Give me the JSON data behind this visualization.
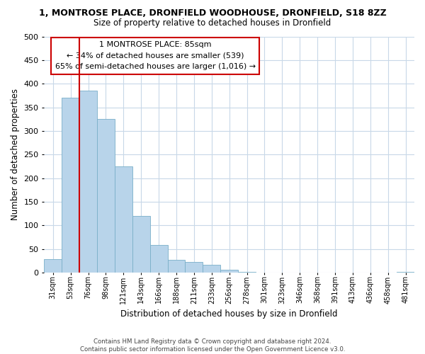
{
  "title": "1, MONTROSE PLACE, DRONFIELD WOODHOUSE, DRONFIELD, S18 8ZZ",
  "subtitle": "Size of property relative to detached houses in Dronfield",
  "xlabel": "Distribution of detached houses by size in Dronfield",
  "ylabel": "Number of detached properties",
  "bar_color": "#b8d4ea",
  "bar_edge_color": "#7aafc8",
  "categories": [
    "31sqm",
    "53sqm",
    "76sqm",
    "98sqm",
    "121sqm",
    "143sqm",
    "166sqm",
    "188sqm",
    "211sqm",
    "233sqm",
    "256sqm",
    "278sqm",
    "301sqm",
    "323sqm",
    "346sqm",
    "368sqm",
    "391sqm",
    "413sqm",
    "436sqm",
    "458sqm",
    "481sqm"
  ],
  "values": [
    28,
    370,
    385,
    325,
    225,
    120,
    58,
    27,
    23,
    17,
    6,
    1,
    0,
    0,
    0,
    0,
    0,
    0,
    0,
    0,
    2
  ],
  "ylim": [
    0,
    500
  ],
  "yticks": [
    0,
    50,
    100,
    150,
    200,
    250,
    300,
    350,
    400,
    450,
    500
  ],
  "vline_x_index": 2,
  "vline_color": "#cc0000",
  "annotation_title": "1 MONTROSE PLACE: 85sqm",
  "annotation_line1": "← 34% of detached houses are smaller (539)",
  "annotation_line2": "65% of semi-detached houses are larger (1,016) →",
  "annotation_box_color": "#ffffff",
  "annotation_box_edge": "#cc0000",
  "footer1": "Contains HM Land Registry data © Crown copyright and database right 2024.",
  "footer2": "Contains public sector information licensed under the Open Government Licence v3.0.",
  "bg_color": "#ffffff",
  "grid_color": "#c8d8e8"
}
